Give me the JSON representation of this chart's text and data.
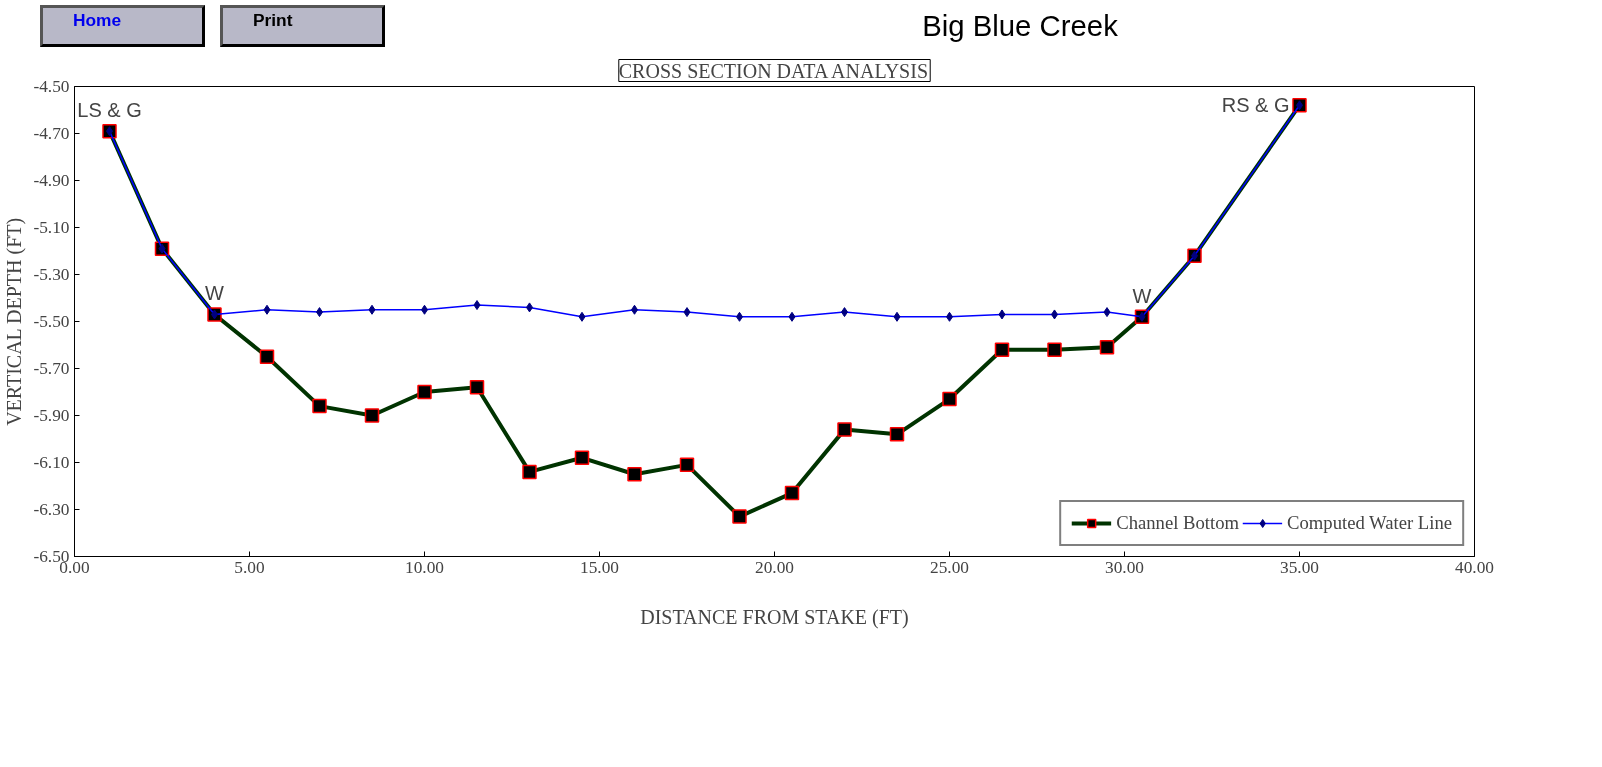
{
  "chart_data": {
    "type": "line",
    "title": "Big Blue Creek",
    "subtitle": "CROSS SECTION DATA ANALYSIS",
    "xlabel": "DISTANCE FROM STAKE (FT)",
    "ylabel": "VERTICAL DEPTH (FT)",
    "x": [
      1.0,
      2.5,
      4.0,
      5.5,
      7.0,
      8.5,
      10.0,
      11.5,
      13.0,
      14.5,
      16.0,
      17.5,
      19.0,
      20.5,
      22.0,
      23.5,
      25.0,
      26.5,
      28.0,
      29.5,
      30.5,
      32.0,
      35.0
    ],
    "series": [
      {
        "name": "Channel Bottom",
        "color": "#003300",
        "marker": "square",
        "values": [
          -4.69,
          -5.19,
          -5.47,
          -5.65,
          -5.86,
          -5.9,
          -5.8,
          -5.78,
          -6.14,
          -6.08,
          -6.15,
          -6.11,
          -6.33,
          -6.23,
          -5.96,
          -5.98,
          -5.83,
          -5.62,
          -5.62,
          -5.61,
          -5.48,
          -5.22,
          -4.58
        ]
      },
      {
        "name": "Computed Water Line",
        "color": "#0000ff",
        "marker": "diamond",
        "values": [
          -4.69,
          -5.19,
          -5.47,
          -5.45,
          -5.46,
          -5.45,
          -5.45,
          -5.43,
          -5.44,
          -5.48,
          -5.45,
          -5.46,
          -5.48,
          -5.48,
          -5.46,
          -5.48,
          -5.48,
          -5.47,
          -5.47,
          -5.46,
          -5.48,
          -5.22,
          -4.58
        ]
      }
    ],
    "xlim": [
      0,
      40
    ],
    "ylim": [
      -6.5,
      -4.5
    ],
    "xticks": [
      {
        "value": 0,
        "label": "0.00"
      },
      {
        "value": 5,
        "label": "5.00"
      },
      {
        "value": 10,
        "label": "10.00"
      },
      {
        "value": 15,
        "label": "15.00"
      },
      {
        "value": 20,
        "label": "20.00"
      },
      {
        "value": 25,
        "label": "25.00"
      },
      {
        "value": 30,
        "label": "30.00"
      },
      {
        "value": 35,
        "label": "35.00"
      },
      {
        "value": 40,
        "label": "40.00"
      }
    ],
    "yticks": [
      {
        "value": -4.5,
        "label": "-4.50"
      },
      {
        "value": -4.7,
        "label": "-4.70"
      },
      {
        "value": -4.9,
        "label": "-4.90"
      },
      {
        "value": -5.1,
        "label": "-5.10"
      },
      {
        "value": -5.3,
        "label": "-5.30"
      },
      {
        "value": -5.5,
        "label": "-5.50"
      },
      {
        "value": -5.7,
        "label": "-5.70"
      },
      {
        "value": -5.9,
        "label": "-5.90"
      },
      {
        "value": -6.1,
        "label": "-6.10"
      },
      {
        "value": -6.3,
        "label": "-6.30"
      },
      {
        "value": -6.5,
        "label": "-6.50"
      }
    ],
    "grid": false,
    "legend": "bottom right",
    "annotations": [
      "Home",
      "Print",
      {
        "text": "LS & G",
        "x": 1.0,
        "y": -4.69
      },
      {
        "text": "W",
        "x": 4.0,
        "y": -5.47
      },
      {
        "text": "W",
        "x": 30.5,
        "y": -5.48
      },
      {
        "text": "RS & G",
        "x": 35.0,
        "y": -4.58
      }
    ]
  }
}
